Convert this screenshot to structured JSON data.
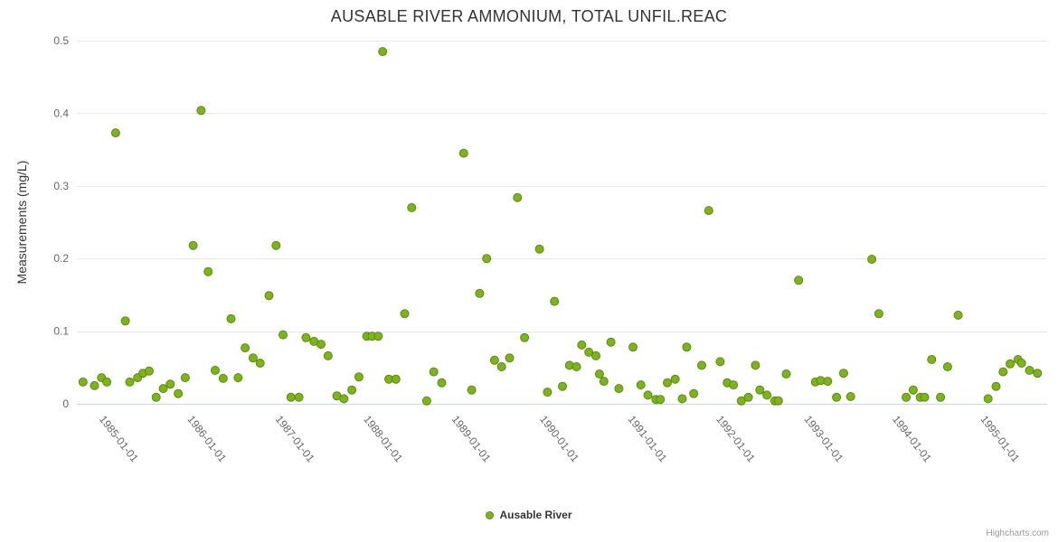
{
  "chart_data": {
    "type": "scatter",
    "title": "AUSABLE RIVER AMMONIUM, TOTAL UNFIL.REAC",
    "xlabel": "",
    "ylabel": "Measurements (mg/L)",
    "series_name": "Ausable River",
    "x_unit": "decimal_year",
    "xlim": [
      1984.71,
      1995.72
    ],
    "ylim": [
      0,
      0.5
    ],
    "grid": true,
    "legend_position": "bottom-center",
    "y_ticks": [
      0,
      0.1,
      0.2,
      0.3,
      0.4,
      0.5
    ],
    "y_tick_labels": [
      "0",
      "0.1",
      "0.2",
      "0.3",
      "0.4",
      "0.5"
    ],
    "x_ticks": [
      1985,
      1986,
      1987,
      1988,
      1989,
      1990,
      1991,
      1992,
      1993,
      1994,
      1995
    ],
    "x_tick_labels": [
      "1985-01-01",
      "1986-01-01",
      "1987-01-01",
      "1988-01-01",
      "1989-01-01",
      "1990-01-01",
      "1991-01-01",
      "1992-01-01",
      "1993-01-01",
      "1994-01-01",
      "1995-01-01"
    ],
    "colors": {
      "marker_fill": "#7db31e",
      "marker_stroke": "#5d8a0e",
      "grid": "#e6e6e6",
      "axis_line": "#ccd6eb",
      "axis_label": "#666666",
      "title": "#333333",
      "credits": "#999999"
    },
    "points": [
      [
        1984.78,
        0.03
      ],
      [
        1984.91,
        0.025
      ],
      [
        1984.99,
        0.036
      ],
      [
        1985.05,
        0.03
      ],
      [
        1985.15,
        0.373
      ],
      [
        1985.26,
        0.114
      ],
      [
        1985.31,
        0.03
      ],
      [
        1985.4,
        0.036
      ],
      [
        1985.46,
        0.042
      ],
      [
        1985.53,
        0.045
      ],
      [
        1985.61,
        0.009
      ],
      [
        1985.69,
        0.021
      ],
      [
        1985.77,
        0.027
      ],
      [
        1985.86,
        0.014
      ],
      [
        1985.94,
        0.036
      ],
      [
        1986.03,
        0.218
      ],
      [
        1986.12,
        0.404
      ],
      [
        1986.2,
        0.182
      ],
      [
        1986.28,
        0.046
      ],
      [
        1986.37,
        0.035
      ],
      [
        1986.46,
        0.117
      ],
      [
        1986.54,
        0.036
      ],
      [
        1986.62,
        0.077
      ],
      [
        1986.71,
        0.063
      ],
      [
        1986.79,
        0.056
      ],
      [
        1986.89,
        0.149
      ],
      [
        1986.97,
        0.218
      ],
      [
        1987.05,
        0.095
      ],
      [
        1987.14,
        0.009
      ],
      [
        1987.23,
        0.009
      ],
      [
        1987.31,
        0.091
      ],
      [
        1987.4,
        0.086
      ],
      [
        1987.48,
        0.082
      ],
      [
        1987.56,
        0.066
      ],
      [
        1987.66,
        0.011
      ],
      [
        1987.74,
        0.007
      ],
      [
        1987.83,
        0.019
      ],
      [
        1987.91,
        0.037
      ],
      [
        1988.0,
        0.093
      ],
      [
        1988.06,
        0.093
      ],
      [
        1988.13,
        0.093
      ],
      [
        1988.18,
        0.485
      ],
      [
        1988.25,
        0.034
      ],
      [
        1988.33,
        0.034
      ],
      [
        1988.43,
        0.124
      ],
      [
        1988.51,
        0.27
      ],
      [
        1988.68,
        0.004
      ],
      [
        1988.76,
        0.044
      ],
      [
        1988.85,
        0.029
      ],
      [
        1989.1,
        0.345
      ],
      [
        1989.19,
        0.019
      ],
      [
        1989.28,
        0.152
      ],
      [
        1989.36,
        0.2
      ],
      [
        1989.45,
        0.06
      ],
      [
        1989.53,
        0.051
      ],
      [
        1989.62,
        0.063
      ],
      [
        1989.71,
        0.284
      ],
      [
        1989.79,
        0.091
      ],
      [
        1989.96,
        0.213
      ],
      [
        1990.05,
        0.016
      ],
      [
        1990.13,
        0.141
      ],
      [
        1990.22,
        0.024
      ],
      [
        1990.3,
        0.053
      ],
      [
        1990.38,
        0.051
      ],
      [
        1990.44,
        0.081
      ],
      [
        1990.52,
        0.071
      ],
      [
        1990.6,
        0.066
      ],
      [
        1990.64,
        0.041
      ],
      [
        1990.69,
        0.031
      ],
      [
        1990.77,
        0.085
      ],
      [
        1990.86,
        0.021
      ],
      [
        1991.02,
        0.078
      ],
      [
        1991.11,
        0.026
      ],
      [
        1991.19,
        0.012
      ],
      [
        1991.28,
        0.006
      ],
      [
        1991.33,
        0.006
      ],
      [
        1991.41,
        0.029
      ],
      [
        1991.5,
        0.034
      ],
      [
        1991.58,
        0.007
      ],
      [
        1991.63,
        0.078
      ],
      [
        1991.71,
        0.014
      ],
      [
        1991.8,
        0.053
      ],
      [
        1991.88,
        0.266
      ],
      [
        1992.01,
        0.058
      ],
      [
        1992.09,
        0.029
      ],
      [
        1992.16,
        0.026
      ],
      [
        1992.25,
        0.004
      ],
      [
        1992.33,
        0.009
      ],
      [
        1992.41,
        0.053
      ],
      [
        1992.46,
        0.019
      ],
      [
        1992.54,
        0.012
      ],
      [
        1992.63,
        0.004
      ],
      [
        1992.67,
        0.004
      ],
      [
        1992.76,
        0.041
      ],
      [
        1992.9,
        0.17
      ],
      [
        1993.09,
        0.03
      ],
      [
        1993.15,
        0.032
      ],
      [
        1993.23,
        0.031
      ],
      [
        1993.33,
        0.009
      ],
      [
        1993.41,
        0.042
      ],
      [
        1993.49,
        0.01
      ],
      [
        1993.73,
        0.199
      ],
      [
        1993.81,
        0.124
      ],
      [
        1994.12,
        0.009
      ],
      [
        1994.2,
        0.019
      ],
      [
        1994.28,
        0.009
      ],
      [
        1994.33,
        0.009
      ],
      [
        1994.41,
        0.061
      ],
      [
        1994.51,
        0.009
      ],
      [
        1994.59,
        0.051
      ],
      [
        1994.71,
        0.122
      ],
      [
        1995.05,
        0.007
      ],
      [
        1995.14,
        0.024
      ],
      [
        1995.22,
        0.044
      ],
      [
        1995.3,
        0.055
      ],
      [
        1995.39,
        0.061
      ],
      [
        1995.43,
        0.056
      ],
      [
        1995.52,
        0.046
      ],
      [
        1995.61,
        0.042
      ]
    ]
  },
  "credits": {
    "label": "Highcharts.com"
  }
}
